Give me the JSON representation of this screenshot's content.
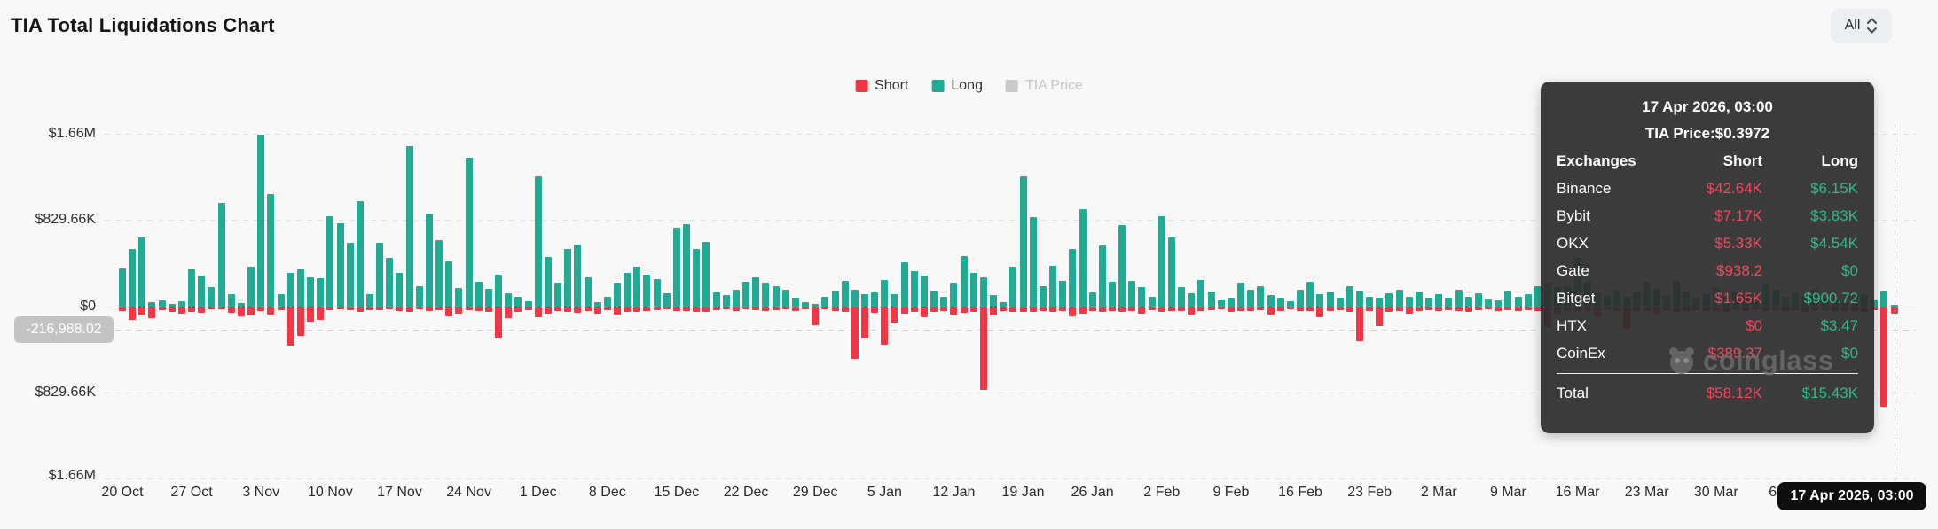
{
  "header": {
    "title": "TIA Total Liquidations Chart",
    "range_select": {
      "value": "All"
    }
  },
  "legend": [
    {
      "label": "Short",
      "color": "#f23645",
      "active": true
    },
    {
      "label": "Long",
      "color": "#22ab94",
      "active": true
    },
    {
      "label": "TIA Price",
      "color": "#c9c9c9",
      "active": false
    }
  ],
  "y_axis": {
    "labels": [
      "$1.66M",
      "$829.66K",
      "$0",
      "$829.66K",
      "$1.66M"
    ]
  },
  "current_value_badge": "-216,988.02",
  "x_axis": {
    "labels": [
      "20 Oct",
      "27 Oct",
      "3 Nov",
      "10 Nov",
      "17 Nov",
      "24 Nov",
      "1 Dec",
      "8 Dec",
      "15 Dec",
      "22 Dec",
      "29 Dec",
      "5 Jan",
      "12 Jan",
      "19 Jan",
      "26 Jan",
      "2 Feb",
      "9 Feb",
      "16 Feb",
      "23 Feb",
      "2 Mar",
      "9 Mar",
      "16 Mar",
      "23 Mar",
      "30 Mar",
      "6 Apr",
      "13 Apr"
    ]
  },
  "crosshair_date_badge": "17 Apr 2026, 03:00",
  "watermark": "coinglass",
  "tooltip": {
    "date": "17 Apr 2026, 03:00",
    "price_line": "TIA Price:$0.3972",
    "columns": [
      "Exchanges",
      "Short",
      "Long"
    ],
    "short_color": "#f5475d",
    "long_color": "#2ebd85",
    "rows": [
      {
        "exchange": "Binance",
        "short": "$42.64K",
        "long": "$6.15K"
      },
      {
        "exchange": "Bybit",
        "short": "$7.17K",
        "long": "$3.83K"
      },
      {
        "exchange": "OKX",
        "short": "$5.33K",
        "long": "$4.54K"
      },
      {
        "exchange": "Gate",
        "short": "$938.2",
        "long": "$0"
      },
      {
        "exchange": "Bitget",
        "short": "$1.65K",
        "long": "$900.72"
      },
      {
        "exchange": "HTX",
        "short": "$0",
        "long": "$3.47"
      },
      {
        "exchange": "CoinEx",
        "short": "$389.37",
        "long": "$0"
      }
    ],
    "total": {
      "exchange": "Total",
      "short": "$58.12K",
      "long": "$15.43K"
    }
  },
  "chart_data": {
    "type": "bar",
    "title": "TIA Total Liquidations Chart",
    "interval": "1d",
    "x_start": "20 Oct",
    "x_end": "17 Apr 2026",
    "x_weekly_ticks": [
      "20 Oct",
      "27 Oct",
      "3 Nov",
      "10 Nov",
      "17 Nov",
      "24 Nov",
      "1 Dec",
      "8 Dec",
      "15 Dec",
      "22 Dec",
      "29 Dec",
      "5 Jan",
      "12 Jan",
      "19 Jan",
      "26 Jan",
      "2 Feb",
      "9 Feb",
      "16 Feb",
      "23 Feb",
      "2 Mar",
      "9 Mar",
      "16 Mar",
      "23 Mar",
      "30 Mar",
      "6 Apr",
      "13 Apr"
    ],
    "ylim_usd": [
      -1660000,
      1660000
    ],
    "y_ticks": [
      "$1.66M",
      "$829.66K",
      "$0",
      "-$829.66K",
      "-$1.66M"
    ],
    "grid": true,
    "legend_position": "top-center",
    "units": "thousand USD (estimated from pixels)",
    "hovered_point": {
      "date": "17 Apr 2026, 03:00",
      "short_usd_k": 58.12,
      "long_usd_k": 15.43,
      "tia_price_usd": 0.3972
    },
    "series": [
      {
        "name": "Long",
        "color": "#22ab94",
        "values_usd_k": [
          370,
          556,
          660,
          45,
          57,
          25,
          48,
          356,
          302,
          188,
          995,
          120,
          35,
          380,
          1655,
          1085,
          115,
          320,
          360,
          285,
          270,
          870,
          800,
          615,
          1010,
          115,
          615,
          470,
          320,
          1540,
          200,
          890,
          640,
          430,
          180,
          1430,
          240,
          170,
          310,
          130,
          90,
          55,
          1250,
          480,
          230,
          550,
          600,
          280,
          45,
          90,
          230,
          320,
          380,
          310,
          260,
          130,
          760,
          790,
          555,
          625,
          135,
          110,
          165,
          240,
          285,
          230,
          195,
          165,
          85,
          40,
          25,
          95,
          155,
          245,
          165,
          115,
          140,
          255,
          120,
          425,
          340,
          300,
          155,
          95,
          230,
          485,
          325,
          285,
          110,
          45,
          385,
          1255,
          860,
          195,
          395,
          245,
          555,
          940,
          135,
          585,
          235,
          780,
          250,
          190,
          95,
          870,
          665,
          185,
          125,
          255,
          145,
          65,
          85,
          230,
          160,
          200,
          110,
          85,
          50,
          165,
          240,
          120,
          145,
          85,
          195,
          155,
          95,
          85,
          125,
          165,
          95,
          145,
          85,
          120,
          85,
          160,
          95,
          130,
          75,
          60,
          155,
          95,
          115,
          200,
          230,
          185,
          195,
          470,
          240,
          130,
          105,
          165,
          95,
          140,
          235,
          170,
          110,
          250,
          145,
          85,
          120,
          185,
          95,
          145,
          110,
          75,
          220,
          160,
          90,
          130,
          105,
          170,
          85,
          60,
          40,
          85,
          120,
          65,
          155,
          15
        ]
      },
      {
        "name": "Short",
        "color": "#f23645",
        "values_usd_k": [
          34,
          120,
          80,
          105,
          23,
          45,
          63,
          45,
          51,
          15,
          18,
          51,
          85,
          80,
          35,
          70,
          28,
          365,
          270,
          137,
          115,
          28,
          15,
          23,
          45,
          28,
          23,
          15,
          35,
          45,
          20,
          30,
          25,
          85,
          60,
          25,
          30,
          45,
          300,
          100,
          40,
          25,
          90,
          60,
          35,
          45,
          50,
          30,
          60,
          25,
          70,
          45,
          40,
          35,
          25,
          20,
          35,
          30,
          40,
          45,
          25,
          20,
          30,
          20,
          25,
          30,
          25,
          20,
          30,
          15,
          170,
          20,
          30,
          40,
          495,
          300,
          55,
          360,
          145,
          60,
          40,
          95,
          45,
          30,
          65,
          50,
          40,
          795,
          80,
          30,
          45,
          40,
          45,
          35,
          40,
          30,
          85,
          60,
          35,
          40,
          30,
          45,
          35,
          60,
          25,
          40,
          35,
          30,
          70,
          30,
          25,
          20,
          45,
          35,
          30,
          25,
          70,
          30,
          20,
          30,
          35,
          95,
          30,
          25,
          40,
          325,
          30,
          175,
          40,
          30,
          60,
          30,
          25,
          30,
          25,
          35,
          45,
          25,
          20,
          30,
          25,
          30,
          25,
          35,
          190,
          60,
          30,
          35,
          30,
          85,
          25,
          30,
          200,
          35,
          30,
          60,
          25,
          45,
          30,
          25,
          35,
          30,
          45,
          25,
          30,
          20,
          35,
          25,
          30,
          25,
          40,
          30,
          25,
          35,
          30,
          30,
          40,
          25,
          955,
          58
        ]
      }
    ]
  }
}
